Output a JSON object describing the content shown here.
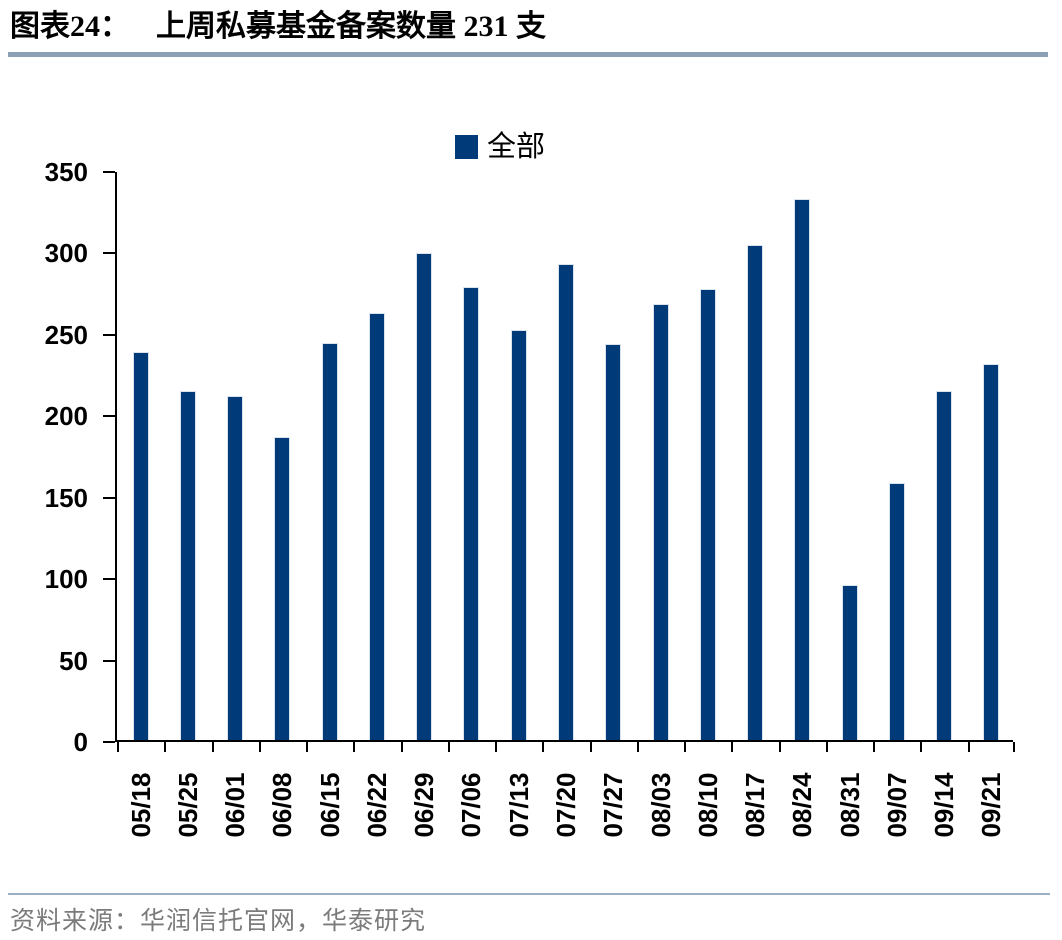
{
  "header": {
    "label": "图表24：",
    "title": "上周私募基金备案数量 231 支"
  },
  "chart_data": {
    "type": "bar",
    "title": "上周私募基金备案数量 231 支",
    "legend": [
      "全部"
    ],
    "legend_position": "top-center",
    "categories": [
      "05/18",
      "05/25",
      "06/01",
      "06/08",
      "06/15",
      "06/22",
      "06/29",
      "07/06",
      "07/13",
      "07/20",
      "07/27",
      "08/03",
      "08/10",
      "08/17",
      "08/24",
      "08/31",
      "09/07",
      "09/14",
      "09/21"
    ],
    "values": [
      238,
      214,
      211,
      186,
      244,
      262,
      299,
      278,
      252,
      292,
      243,
      268,
      277,
      304,
      332,
      95,
      158,
      214,
      231
    ],
    "ylabel": "",
    "xlabel": "",
    "ylim": [
      0,
      350
    ],
    "ytick_step": 50,
    "yticks": [
      "0",
      "50",
      "100",
      "150",
      "200",
      "250",
      "300",
      "350"
    ],
    "grid": false,
    "bar_color": "#003a78"
  },
  "footer": {
    "source": "资料来源：华润信托官网，华泰研究"
  },
  "colors": {
    "bar": "#003a78",
    "title_divider": "#8ba0b5",
    "footer_divider": "#9bb0c4",
    "source_text": "#7b7b7b",
    "axis": "#000000"
  }
}
